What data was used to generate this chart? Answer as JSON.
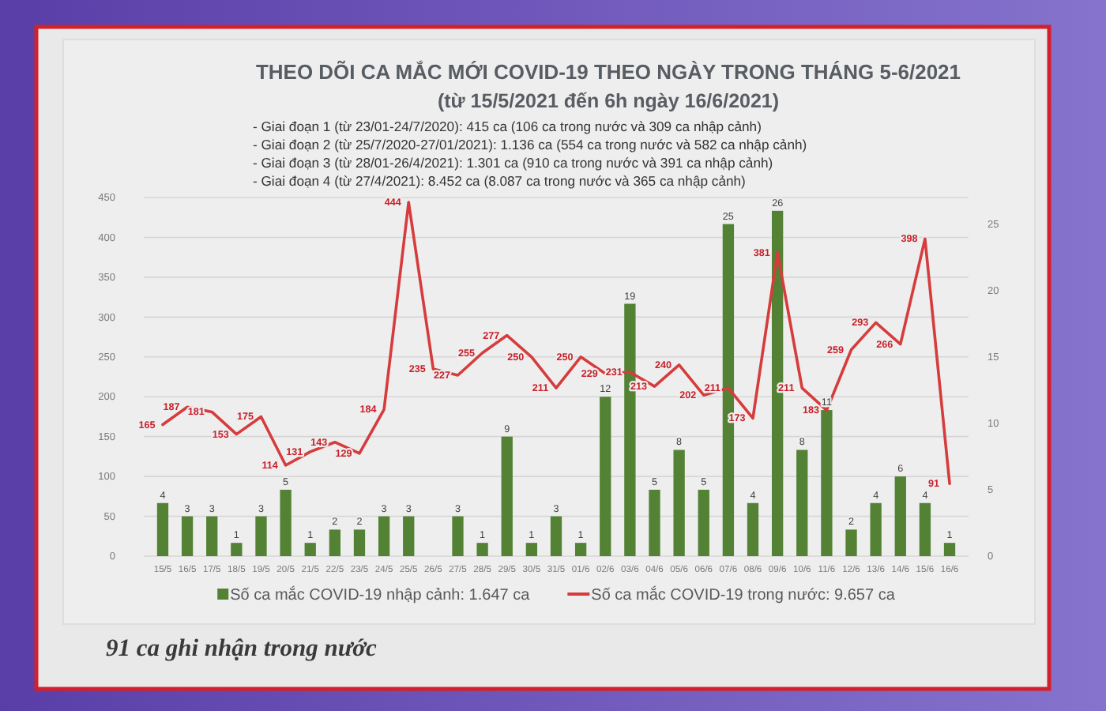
{
  "chart_data": {
    "type": "bar",
    "title": "THEO DÕI CA MẮC MỚI COVID-19 THEO NGÀY TRONG THÁNG 5-6/2021",
    "subtitle": "(từ 15/5/2021 đến 6h ngày 16/6/2021)",
    "annotations": [
      "- Giai đoạn 1 (từ 23/01-24/7/2020): 415 ca (106 ca trong nước và 309 ca nhập cảnh)",
      "- Giai đoạn 2 (từ 25/7/2020-27/01/2021): 1.136 ca (554 ca trong nước và 582 ca nhập cảnh)",
      "- Giai đoạn 3 (từ 28/01-26/4/2021): 1.301 ca (910 ca trong nước và 391 ca nhập cảnh)",
      "- Giai đoạn 4 (từ 27/4/2021): 8.452 ca (8.087 ca trong nước và 365 ca nhập cảnh)",
      "91 ca ghi nhận trong nước"
    ],
    "categories": [
      "15/5",
      "16/5",
      "17/5",
      "18/5",
      "19/5",
      "20/5",
      "21/5",
      "22/5",
      "23/5",
      "24/5",
      "25/5",
      "26/5",
      "27/5",
      "28/5",
      "29/5",
      "30/5",
      "31/5",
      "01/6",
      "02/6",
      "03/6",
      "04/6",
      "05/6",
      "06/6",
      "07/6",
      "08/6",
      "09/6",
      "10/6",
      "11/6",
      "12/6",
      "13/6",
      "14/6",
      "15/6",
      "16/6"
    ],
    "series": [
      {
        "name": "Số ca mắc COVID-19 nhập cảnh: 1.647 ca",
        "axis": "y2",
        "color": "#548235",
        "values": [
          4,
          3,
          3,
          1,
          3,
          5,
          1,
          2,
          2,
          3,
          3,
          null,
          3,
          1,
          9,
          1,
          3,
          1,
          12,
          19,
          5,
          8,
          5,
          25,
          4,
          26,
          8,
          11,
          2,
          4,
          6,
          4,
          1
        ]
      },
      {
        "name": "Số ca mắc COVID-19 trong nước: 9.657 ca",
        "type": "line",
        "color": "#d63c3c",
        "values": [
          165,
          187,
          181,
          153,
          175,
          114,
          131,
          143,
          129,
          184,
          444,
          235,
          227,
          255,
          277,
          250,
          211,
          250,
          229,
          231,
          213,
          240,
          202,
          211,
          173,
          381,
          211,
          183,
          259,
          293,
          266,
          398,
          91
        ]
      }
    ],
    "ylim": [
      0,
      450
    ],
    "yticks": [
      0,
      50,
      100,
      150,
      200,
      250,
      300,
      350,
      400,
      450
    ],
    "y2lim": [
      0,
      27
    ],
    "y2ticks": [
      0,
      5,
      10,
      15,
      20,
      25
    ],
    "grid": "y",
    "legend": "bottom",
    "data_labels": true
  }
}
